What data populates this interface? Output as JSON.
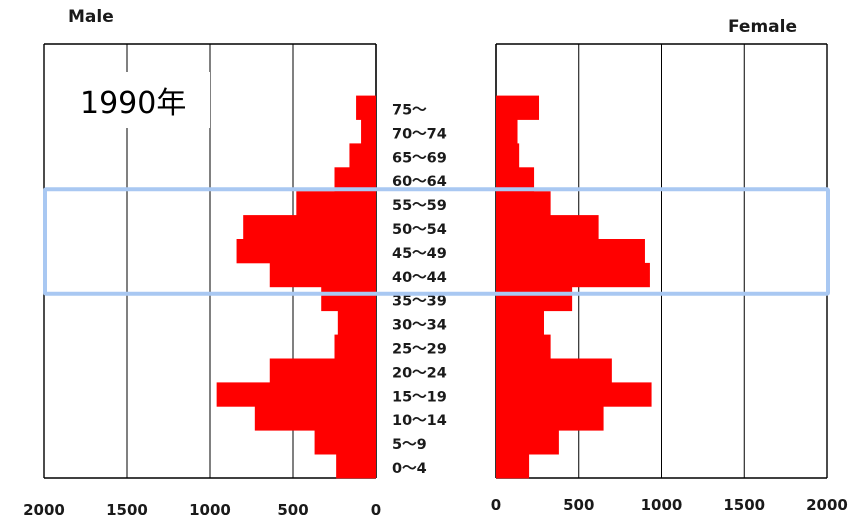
{
  "chart_data": {
    "type": "bar",
    "orientation": "horizontal",
    "layout": "population-pyramid",
    "annotation": "1990年",
    "categories": [
      "0～4",
      "5～9",
      "10～14",
      "15～19",
      "20～24",
      "25～29",
      "30～34",
      "35～39",
      "40～44",
      "45～49",
      "50～54",
      "55～59",
      "60～64",
      "65～69",
      "70～74",
      "75～"
    ],
    "series": [
      {
        "name": "Male",
        "color": "#ff0000",
        "values": [
          240,
          370,
          730,
          960,
          640,
          250,
          230,
          330,
          640,
          840,
          800,
          480,
          250,
          160,
          90,
          120
        ]
      },
      {
        "name": "Female",
        "color": "#ff0000",
        "values": [
          200,
          380,
          650,
          940,
          700,
          330,
          290,
          460,
          930,
          900,
          620,
          330,
          230,
          140,
          130,
          260
        ]
      }
    ],
    "male_axis": {
      "ticks": [
        2000,
        1500,
        1000,
        500,
        0
      ],
      "xlim": [
        2000,
        0
      ]
    },
    "female_axis": {
      "ticks": [
        0,
        500,
        1000,
        1500,
        2000
      ],
      "xlim": [
        0,
        2000
      ]
    },
    "grid": true,
    "highlight": {
      "from": "40～44",
      "to": "55～59",
      "color": "#a9c8f2"
    }
  }
}
